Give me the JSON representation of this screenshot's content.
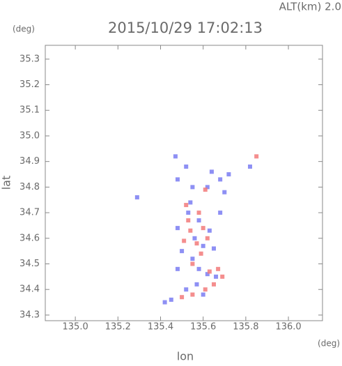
{
  "chart_data": {
    "type": "scatter",
    "title": "2015/10/29 17:02:13",
    "subtitle": "ALT(km) 2.0",
    "x_label": "lon",
    "y_label": "lat",
    "x_unit": "(deg)",
    "y_unit": "(deg)",
    "xlim": [
      134.859,
      136.16
    ],
    "ylim": [
      34.278,
      35.354
    ],
    "xticks": [
      {
        "value": 135,
        "label": "135.0"
      },
      135.2,
      135.4,
      135.6,
      135.8,
      {
        "value": 136,
        "label": "136.0"
      }
    ],
    "yticks": [
      34.3,
      34.4,
      34.5,
      34.6,
      34.7,
      34.8,
      34.9,
      {
        "value": 35,
        "label": "35.0"
      },
      35.1,
      35.2,
      35.3
    ],
    "series": [
      {
        "color": "#7a7cf2",
        "x": [
          135.47,
          135.52,
          135.48,
          135.55,
          135.62,
          135.64,
          135.68,
          135.72,
          135.7,
          135.53,
          135.58,
          135.63,
          135.56,
          135.5,
          135.6,
          135.65,
          135.55,
          135.48,
          135.58,
          135.62,
          135.66,
          135.57,
          135.52,
          135.6,
          135.45,
          135.42,
          135.29,
          135.82,
          135.48,
          135.54,
          135.68
        ],
        "values": [
          34.92,
          34.88,
          34.83,
          34.8,
          34.8,
          34.86,
          34.83,
          34.85,
          34.78,
          34.7,
          34.67,
          34.63,
          34.6,
          34.55,
          34.57,
          34.56,
          34.52,
          34.48,
          34.48,
          34.46,
          34.45,
          34.42,
          34.4,
          34.38,
          34.36,
          34.35,
          34.76,
          34.88,
          34.64,
          34.74,
          34.7
        ]
      },
      {
        "color": "#f27a7a",
        "x": [
          135.85,
          135.61,
          135.52,
          135.58,
          135.6,
          135.54,
          135.51,
          135.57,
          135.62,
          135.55,
          135.63,
          135.69,
          135.65,
          135.61,
          135.55,
          135.5,
          135.67,
          135.53,
          135.59
        ],
        "values": [
          34.92,
          34.79,
          34.73,
          34.7,
          34.64,
          34.63,
          34.59,
          34.58,
          34.6,
          34.5,
          34.47,
          34.45,
          34.42,
          34.4,
          34.38,
          34.37,
          34.48,
          34.67,
          34.54
        ]
      }
    ]
  }
}
